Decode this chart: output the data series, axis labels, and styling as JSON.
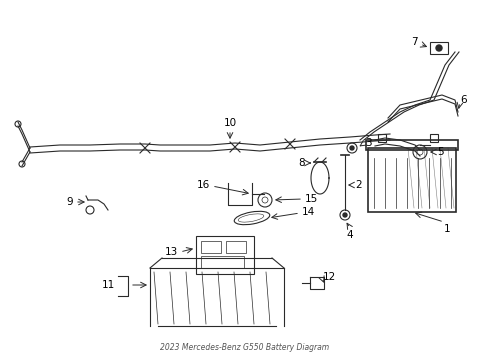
{
  "title": "2023 Mercedes-Benz G550 Battery Diagram",
  "bg_color": "#ffffff",
  "line_color": "#2a2a2a",
  "text_color": "#000000",
  "fig_width": 4.9,
  "fig_height": 3.6,
  "dpi": 100
}
